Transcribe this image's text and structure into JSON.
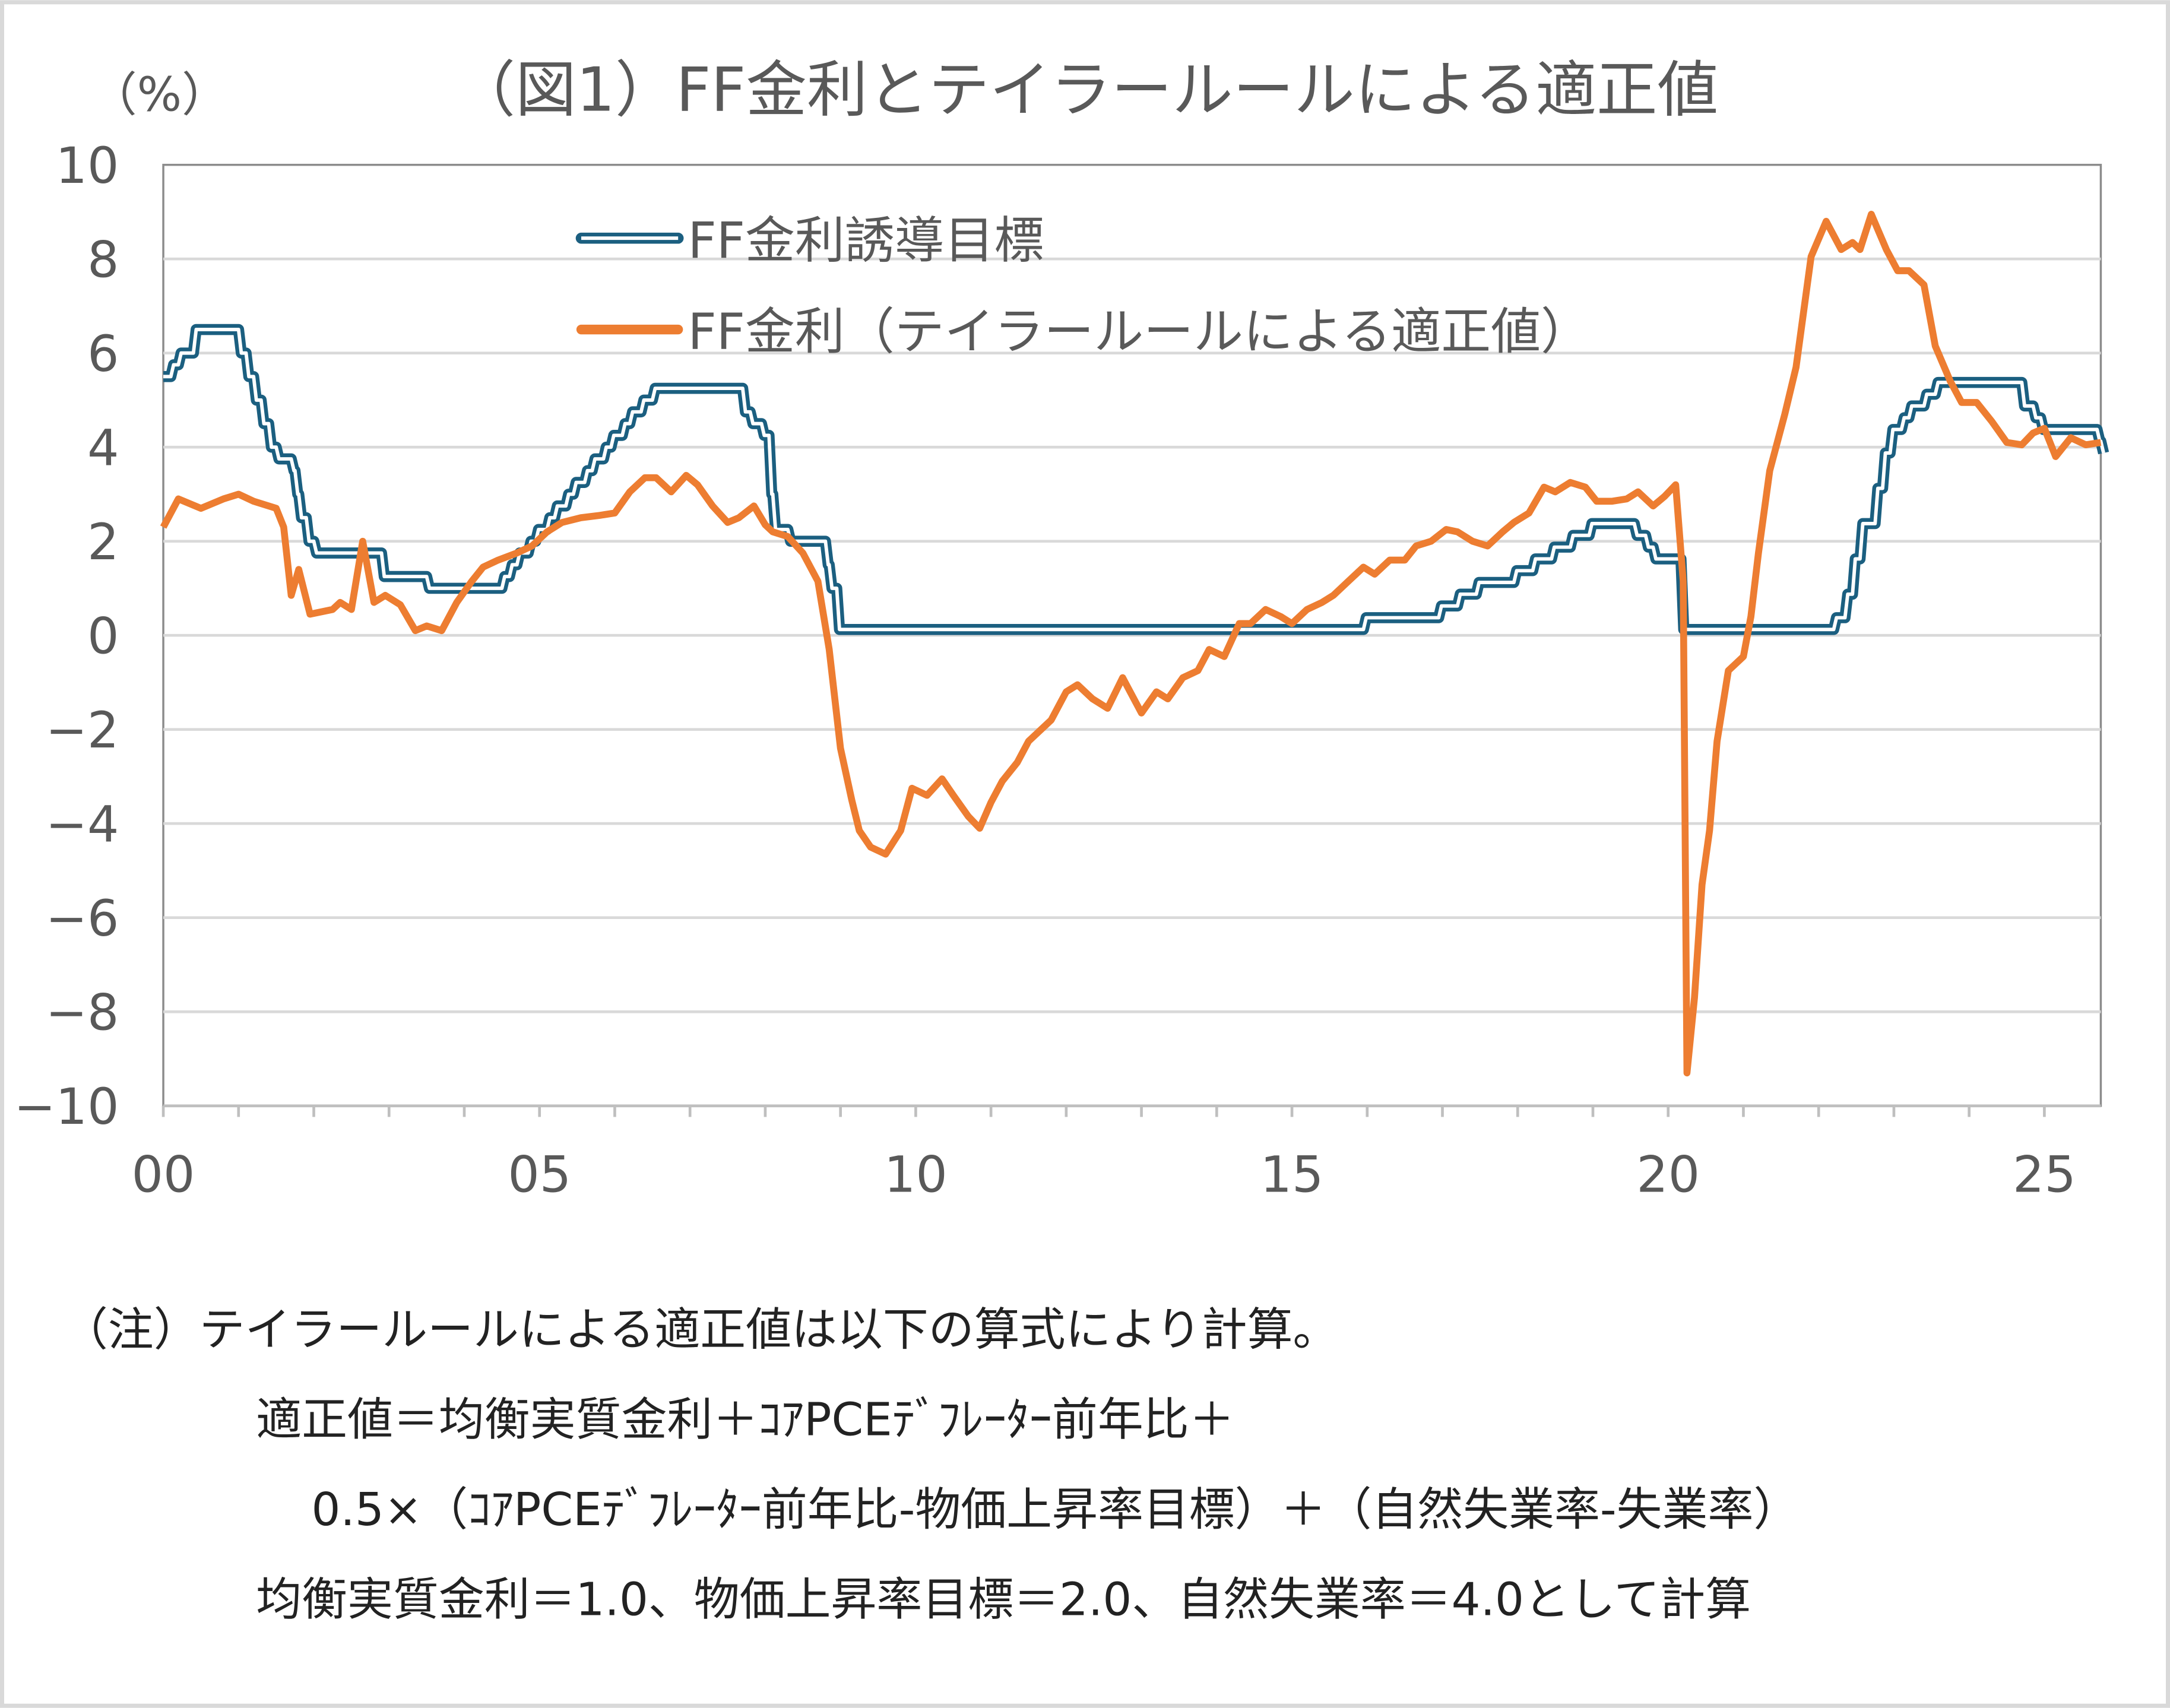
{
  "chart_data": {
    "type": "line",
    "title": "（図1）FF金利とテイラールールによる適正値",
    "ylabel": "（%）",
    "xlabel": "",
    "xlim": [
      2000,
      2025.75
    ],
    "ylim": [
      -10,
      10
    ],
    "y_ticks": [
      10,
      8,
      6,
      4,
      2,
      0,
      -2,
      -4,
      -6,
      -8,
      -10
    ],
    "y_tick_labels": [
      "10",
      "8",
      "6",
      "4",
      "2",
      "0",
      "−2",
      "−4",
      "−6",
      "−8",
      "−10"
    ],
    "x_ticks": [
      2000,
      2005,
      2010,
      2015,
      2020,
      2025
    ],
    "x_tick_labels": [
      "00",
      "05",
      "10",
      "15",
      "20",
      "25"
    ],
    "grid": "horizontal",
    "legend_placement": "top-center",
    "series": [
      {
        "name": "FF金利誘導目標",
        "color": "#1b5f80",
        "style": "double-line-step",
        "points": [
          [
            2000.0,
            5.5
          ],
          [
            2000.1,
            5.75
          ],
          [
            2000.2,
            6.0
          ],
          [
            2000.4,
            6.5
          ],
          [
            2001.0,
            6.0
          ],
          [
            2001.1,
            5.5
          ],
          [
            2001.2,
            5.0
          ],
          [
            2001.3,
            4.5
          ],
          [
            2001.4,
            4.0
          ],
          [
            2001.5,
            3.75
          ],
          [
            2001.7,
            3.5
          ],
          [
            2001.75,
            3.0
          ],
          [
            2001.8,
            2.5
          ],
          [
            2001.9,
            2.0
          ],
          [
            2002.0,
            1.75
          ],
          [
            2002.9,
            1.25
          ],
          [
            2003.5,
            1.0
          ],
          [
            2004.5,
            1.25
          ],
          [
            2004.6,
            1.5
          ],
          [
            2004.7,
            1.75
          ],
          [
            2004.85,
            2.0
          ],
          [
            2004.95,
            2.25
          ],
          [
            2005.1,
            2.5
          ],
          [
            2005.2,
            2.75
          ],
          [
            2005.35,
            3.0
          ],
          [
            2005.45,
            3.25
          ],
          [
            2005.6,
            3.5
          ],
          [
            2005.7,
            3.75
          ],
          [
            2005.85,
            4.0
          ],
          [
            2005.95,
            4.25
          ],
          [
            2006.1,
            4.5
          ],
          [
            2006.2,
            4.75
          ],
          [
            2006.35,
            5.0
          ],
          [
            2006.5,
            5.25
          ],
          [
            2007.7,
            4.75
          ],
          [
            2007.8,
            4.5
          ],
          [
            2007.95,
            4.25
          ],
          [
            2008.05,
            3.0
          ],
          [
            2008.1,
            2.25
          ],
          [
            2008.3,
            2.0
          ],
          [
            2008.8,
            1.5
          ],
          [
            2008.85,
            1.0
          ],
          [
            2008.95,
            0.125
          ],
          [
            2015.95,
            0.375
          ],
          [
            2016.95,
            0.625
          ],
          [
            2017.2,
            0.875
          ],
          [
            2017.45,
            1.125
          ],
          [
            2017.95,
            1.375
          ],
          [
            2018.2,
            1.625
          ],
          [
            2018.45,
            1.875
          ],
          [
            2018.7,
            2.125
          ],
          [
            2018.95,
            2.375
          ],
          [
            2019.55,
            2.125
          ],
          [
            2019.7,
            1.875
          ],
          [
            2019.8,
            1.625
          ],
          [
            2020.17,
            0.125
          ],
          [
            2022.2,
            0.375
          ],
          [
            2022.35,
            0.875
          ],
          [
            2022.45,
            1.625
          ],
          [
            2022.55,
            2.375
          ],
          [
            2022.75,
            3.125
          ],
          [
            2022.85,
            3.875
          ],
          [
            2022.95,
            4.375
          ],
          [
            2023.1,
            4.625
          ],
          [
            2023.2,
            4.875
          ],
          [
            2023.4,
            5.125
          ],
          [
            2023.55,
            5.375
          ],
          [
            2024.7,
            4.875
          ],
          [
            2024.85,
            4.625
          ],
          [
            2024.95,
            4.375
          ],
          [
            2025.7,
            4.125
          ],
          [
            2025.75,
            3.875
          ]
        ]
      },
      {
        "name": "FF金利（テイラールールによる適正値）",
        "color": "#ed7d31",
        "style": "line",
        "points": [
          [
            2000.0,
            2.3
          ],
          [
            2000.2,
            2.9
          ],
          [
            2000.5,
            2.7
          ],
          [
            2000.8,
            2.9
          ],
          [
            2001.0,
            3.0
          ],
          [
            2001.2,
            2.85
          ],
          [
            2001.5,
            2.7
          ],
          [
            2001.6,
            2.3
          ],
          [
            2001.7,
            0.85
          ],
          [
            2001.8,
            1.4
          ],
          [
            2001.95,
            0.45
          ],
          [
            2002.25,
            0.55
          ],
          [
            2002.35,
            0.7
          ],
          [
            2002.5,
            0.55
          ],
          [
            2002.65,
            2.0
          ],
          [
            2002.8,
            0.7
          ],
          [
            2002.95,
            0.85
          ],
          [
            2003.15,
            0.65
          ],
          [
            2003.35,
            0.1
          ],
          [
            2003.5,
            0.2
          ],
          [
            2003.7,
            0.1
          ],
          [
            2003.9,
            0.7
          ],
          [
            2004.1,
            1.15
          ],
          [
            2004.25,
            1.45
          ],
          [
            2004.45,
            1.6
          ],
          [
            2004.7,
            1.75
          ],
          [
            2004.9,
            1.9
          ],
          [
            2005.1,
            2.2
          ],
          [
            2005.3,
            2.4
          ],
          [
            2005.55,
            2.5
          ],
          [
            2005.8,
            2.55
          ],
          [
            2006.0,
            2.6
          ],
          [
            2006.2,
            3.05
          ],
          [
            2006.4,
            3.35
          ],
          [
            2006.55,
            3.35
          ],
          [
            2006.75,
            3.05
          ],
          [
            2006.95,
            3.4
          ],
          [
            2007.1,
            3.2
          ],
          [
            2007.3,
            2.75
          ],
          [
            2007.5,
            2.4
          ],
          [
            2007.65,
            2.5
          ],
          [
            2007.85,
            2.75
          ],
          [
            2008.0,
            2.35
          ],
          [
            2008.1,
            2.2
          ],
          [
            2008.3,
            2.1
          ],
          [
            2008.5,
            1.75
          ],
          [
            2008.7,
            1.15
          ],
          [
            2008.85,
            -0.3
          ],
          [
            2009.0,
            -2.4
          ],
          [
            2009.15,
            -3.5
          ],
          [
            2009.25,
            -4.15
          ],
          [
            2009.4,
            -4.5
          ],
          [
            2009.6,
            -4.65
          ],
          [
            2009.8,
            -4.15
          ],
          [
            2009.95,
            -3.25
          ],
          [
            2010.15,
            -3.4
          ],
          [
            2010.35,
            -3.05
          ],
          [
            2010.5,
            -3.4
          ],
          [
            2010.7,
            -3.85
          ],
          [
            2010.85,
            -4.1
          ],
          [
            2011.0,
            -3.55
          ],
          [
            2011.15,
            -3.1
          ],
          [
            2011.35,
            -2.7
          ],
          [
            2011.5,
            -2.25
          ],
          [
            2011.8,
            -1.8
          ],
          [
            2012.0,
            -1.2
          ],
          [
            2012.15,
            -1.05
          ],
          [
            2012.35,
            -1.35
          ],
          [
            2012.55,
            -1.55
          ],
          [
            2012.75,
            -0.9
          ],
          [
            2013.0,
            -1.65
          ],
          [
            2013.2,
            -1.2
          ],
          [
            2013.35,
            -1.35
          ],
          [
            2013.55,
            -0.9
          ],
          [
            2013.75,
            -0.75
          ],
          [
            2013.9,
            -0.3
          ],
          [
            2014.1,
            -0.45
          ],
          [
            2014.3,
            0.25
          ],
          [
            2014.45,
            0.25
          ],
          [
            2014.65,
            0.55
          ],
          [
            2014.85,
            0.4
          ],
          [
            2015.0,
            0.25
          ],
          [
            2015.2,
            0.55
          ],
          [
            2015.4,
            0.7
          ],
          [
            2015.55,
            0.85
          ],
          [
            2015.75,
            1.15
          ],
          [
            2015.95,
            1.45
          ],
          [
            2016.1,
            1.3
          ],
          [
            2016.3,
            1.6
          ],
          [
            2016.5,
            1.6
          ],
          [
            2016.65,
            1.9
          ],
          [
            2016.85,
            2.0
          ],
          [
            2017.05,
            2.25
          ],
          [
            2017.2,
            2.2
          ],
          [
            2017.4,
            2.0
          ],
          [
            2017.6,
            1.9
          ],
          [
            2017.8,
            2.2
          ],
          [
            2017.95,
            2.4
          ],
          [
            2018.15,
            2.6
          ],
          [
            2018.35,
            3.15
          ],
          [
            2018.5,
            3.05
          ],
          [
            2018.7,
            3.25
          ],
          [
            2018.9,
            3.15
          ],
          [
            2019.05,
            2.85
          ],
          [
            2019.25,
            2.85
          ],
          [
            2019.45,
            2.9
          ],
          [
            2019.6,
            3.05
          ],
          [
            2019.8,
            2.75
          ],
          [
            2019.95,
            2.95
          ],
          [
            2020.1,
            3.2
          ],
          [
            2020.2,
            1.15
          ],
          [
            2020.25,
            -9.3
          ],
          [
            2020.35,
            -7.7
          ],
          [
            2020.45,
            -5.3
          ],
          [
            2020.55,
            -4.15
          ],
          [
            2020.65,
            -2.25
          ],
          [
            2020.8,
            -0.75
          ],
          [
            2021.0,
            -0.45
          ],
          [
            2021.1,
            0.4
          ],
          [
            2021.2,
            1.75
          ],
          [
            2021.35,
            3.5
          ],
          [
            2021.55,
            4.7
          ],
          [
            2021.7,
            5.7
          ],
          [
            2021.9,
            8.05
          ],
          [
            2022.1,
            8.8
          ],
          [
            2022.3,
            8.2
          ],
          [
            2022.45,
            8.35
          ],
          [
            2022.55,
            8.2
          ],
          [
            2022.7,
            8.95
          ],
          [
            2022.9,
            8.2
          ],
          [
            2023.05,
            7.75
          ],
          [
            2023.2,
            7.75
          ],
          [
            2023.4,
            7.45
          ],
          [
            2023.55,
            6.15
          ],
          [
            2023.75,
            5.4
          ],
          [
            2023.9,
            4.95
          ],
          [
            2024.1,
            4.95
          ],
          [
            2024.3,
            4.55
          ],
          [
            2024.5,
            4.1
          ],
          [
            2024.7,
            4.05
          ],
          [
            2024.85,
            4.3
          ],
          [
            2025.0,
            4.4
          ],
          [
            2025.15,
            3.8
          ],
          [
            2025.35,
            4.2
          ],
          [
            2025.55,
            4.05
          ],
          [
            2025.75,
            4.1
          ]
        ]
      }
    ]
  },
  "notes": {
    "line1": "（注）テイラールールによる適正値は以下の算式により計算。",
    "line2": "適正値＝均衡実質金利＋ｺｱPCEﾃﾞﾌﾚｰﾀｰ前年比＋",
    "line3": "0.5×（ｺｱPCEﾃﾞﾌﾚｰﾀｰ前年比-物価上昇率目標）＋（自然失業率-失業率）",
    "line4": "均衡実質金利＝1.0、物価上昇率目標＝2.0、自然失業率＝4.0として計算"
  }
}
